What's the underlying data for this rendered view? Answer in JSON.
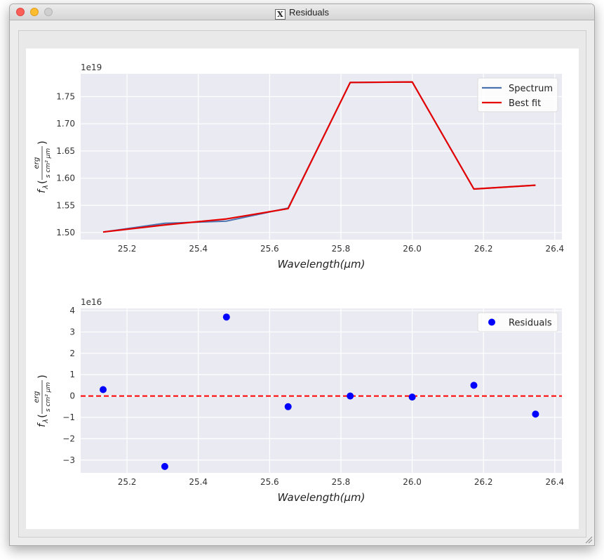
{
  "window": {
    "title": "Residuals",
    "title_icon": "x11-icon"
  },
  "colors": {
    "axes_bg": "#eaeaf2",
    "grid": "#ffffff",
    "spectrum": "#4c72b0",
    "best_fit": "#e50000",
    "residuals": "#0000ff",
    "zero_line": "#ff0000"
  },
  "chart_data": [
    {
      "type": "line",
      "offset_text": "1e19",
      "xlabel": "Wavelength(μm)",
      "ylabel": "f_λ(erg / s cm² μm)",
      "xlim": [
        25.07,
        26.42
      ],
      "ylim": [
        1.487,
        1.792
      ],
      "xticks": [
        "25.2",
        "25.4",
        "25.6",
        "25.8",
        "26.0",
        "26.2",
        "26.4"
      ],
      "yticks": [
        "1.50",
        "1.55",
        "1.60",
        "1.65",
        "1.70",
        "1.75"
      ],
      "x": [
        25.133,
        25.306,
        25.479,
        25.652,
        25.826,
        26.0,
        26.173,
        26.346
      ],
      "series": [
        {
          "name": "Spectrum",
          "values": [
            1.501,
            1.517,
            1.521,
            1.545,
            1.776,
            1.777,
            1.58,
            1.587
          ]
        },
        {
          "name": "Best fit",
          "values": [
            1.501,
            1.514,
            1.525,
            1.544,
            1.776,
            1.777,
            1.58,
            1.587
          ]
        }
      ],
      "legend_position": "top-right",
      "grid": true
    },
    {
      "type": "scatter",
      "offset_text": "1e16",
      "xlabel": "Wavelength(μm)",
      "ylabel": "f_λ(erg / s cm² μm)",
      "xlim": [
        25.07,
        26.42
      ],
      "ylim": [
        -3.6,
        4.1
      ],
      "xticks": [
        "25.2",
        "25.4",
        "25.6",
        "25.8",
        "26.0",
        "26.2",
        "26.4"
      ],
      "yticks": [
        "−3",
        "−2",
        "−1",
        "0",
        "1",
        "2",
        "3",
        "4"
      ],
      "x": [
        25.133,
        25.306,
        25.479,
        25.652,
        25.826,
        26.0,
        26.173,
        26.346
      ],
      "series": [
        {
          "name": "Residuals",
          "values": [
            0.3,
            -3.3,
            3.7,
            -0.5,
            0.0,
            -0.05,
            0.5,
            -0.85
          ]
        }
      ],
      "reference_line": {
        "y": 0,
        "style": "dashed"
      },
      "legend_position": "top-right",
      "grid": true
    }
  ]
}
